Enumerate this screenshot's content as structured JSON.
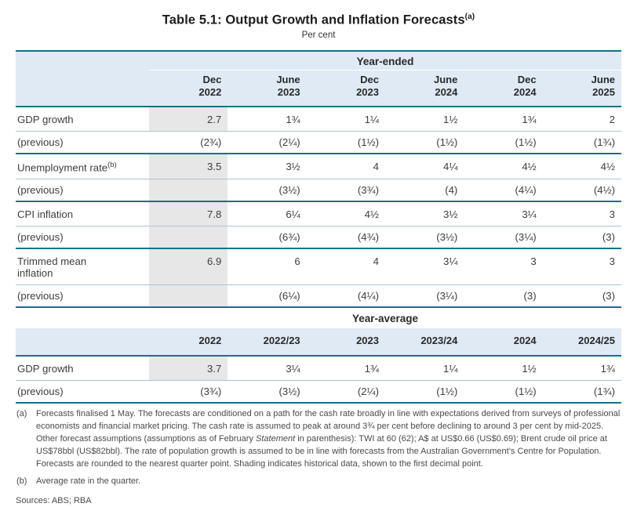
{
  "page": {
    "title": "Table 5.1: Output Growth and Inflation Forecasts",
    "title_sup": "(a)",
    "subtitle": "Per cent"
  },
  "colors": {
    "rule_teal": "#0f7389",
    "header_background": "#dfeaf5",
    "row_separator": "#a9c5d8",
    "historical_shading": "#e7e7e7"
  },
  "year_ended": {
    "section_label": "Year-ended",
    "columns": [
      {
        "line1": "Dec",
        "line2": "2022"
      },
      {
        "line1": "June",
        "line2": "2023"
      },
      {
        "line1": "Dec",
        "line2": "2023"
      },
      {
        "line1": "June",
        "line2": "2024"
      },
      {
        "line1": "Dec",
        "line2": "2024"
      },
      {
        "line1": "June",
        "line2": "2025"
      }
    ],
    "rows": [
      {
        "label": "GDP growth",
        "sup": "",
        "values": [
          "2.7",
          "1¾",
          "1¼",
          "1½",
          "1¾",
          "2"
        ]
      },
      {
        "label": "(previous)",
        "sup": "",
        "values": [
          "(2¾)",
          "(2¼)",
          "(1½)",
          "(1½)",
          "(1½)",
          "(1¾)"
        ]
      },
      {
        "label": "Unemployment rate",
        "sup": "(b)",
        "values": [
          "3.5",
          "3½",
          "4",
          "4¼",
          "4½",
          "4½"
        ]
      },
      {
        "label": "(previous)",
        "sup": "",
        "values": [
          "",
          "(3½)",
          "(3¾)",
          "(4)",
          "(4¼)",
          "(4½)"
        ]
      },
      {
        "label": "CPI inflation",
        "sup": "",
        "values": [
          "7.8",
          "6¼",
          "4½",
          "3½",
          "3¼",
          "3"
        ]
      },
      {
        "label": "(previous)",
        "sup": "",
        "values": [
          "",
          "(6¾)",
          "(4¾)",
          "(3½)",
          "(3¼)",
          "(3)"
        ]
      },
      {
        "label": "Trimmed mean inflation",
        "sup": "",
        "values": [
          "6.9",
          "6",
          "4",
          "3¼",
          "3",
          "3"
        ]
      },
      {
        "label": "(previous)",
        "sup": "",
        "values": [
          "",
          "(6¼)",
          "(4¼)",
          "(3¼)",
          "(3)",
          "(3)"
        ]
      }
    ]
  },
  "year_average": {
    "section_label": "Year-average",
    "columns": [
      "2022",
      "2022/23",
      "2023",
      "2023/24",
      "2024",
      "2024/25"
    ],
    "rows": [
      {
        "label": "GDP growth",
        "values": [
          "3.7",
          "3¼",
          "1¾",
          "1¼",
          "1½",
          "1¾"
        ]
      },
      {
        "label": "(previous)",
        "values": [
          "(3¾)",
          "(3½)",
          "(2¼)",
          "(1½)",
          "(1½)",
          "(1¾)"
        ]
      }
    ]
  },
  "footnotes": {
    "a_label": "(a)",
    "a_text_1": "Forecasts finalised 1 May. The forecasts are conditioned on a path for the cash rate broadly in line with expectations derived from surveys of professional economists and financial market pricing. The cash rate is assumed to peak at around 3¾ per cent before declining to around 3 per cent by mid-2025. Other forecast assumptions (assumptions as of February ",
    "a_italic": "Statement",
    "a_text_2": " in parenthesis): TWI at 60 (62); A$ at US$0.66 (US$0.69); Brent crude oil price at US$78bbl (US$82bbl). The rate of population growth is assumed to be in line with forecasts from the Australian Government’s Centre for Population. Forecasts are rounded to the nearest quarter point. Shading indicates historical data, shown to the first decimal point.",
    "b_label": "(b)",
    "b_text": "Average rate in the quarter.",
    "sources": "Sources: ABS; RBA"
  }
}
